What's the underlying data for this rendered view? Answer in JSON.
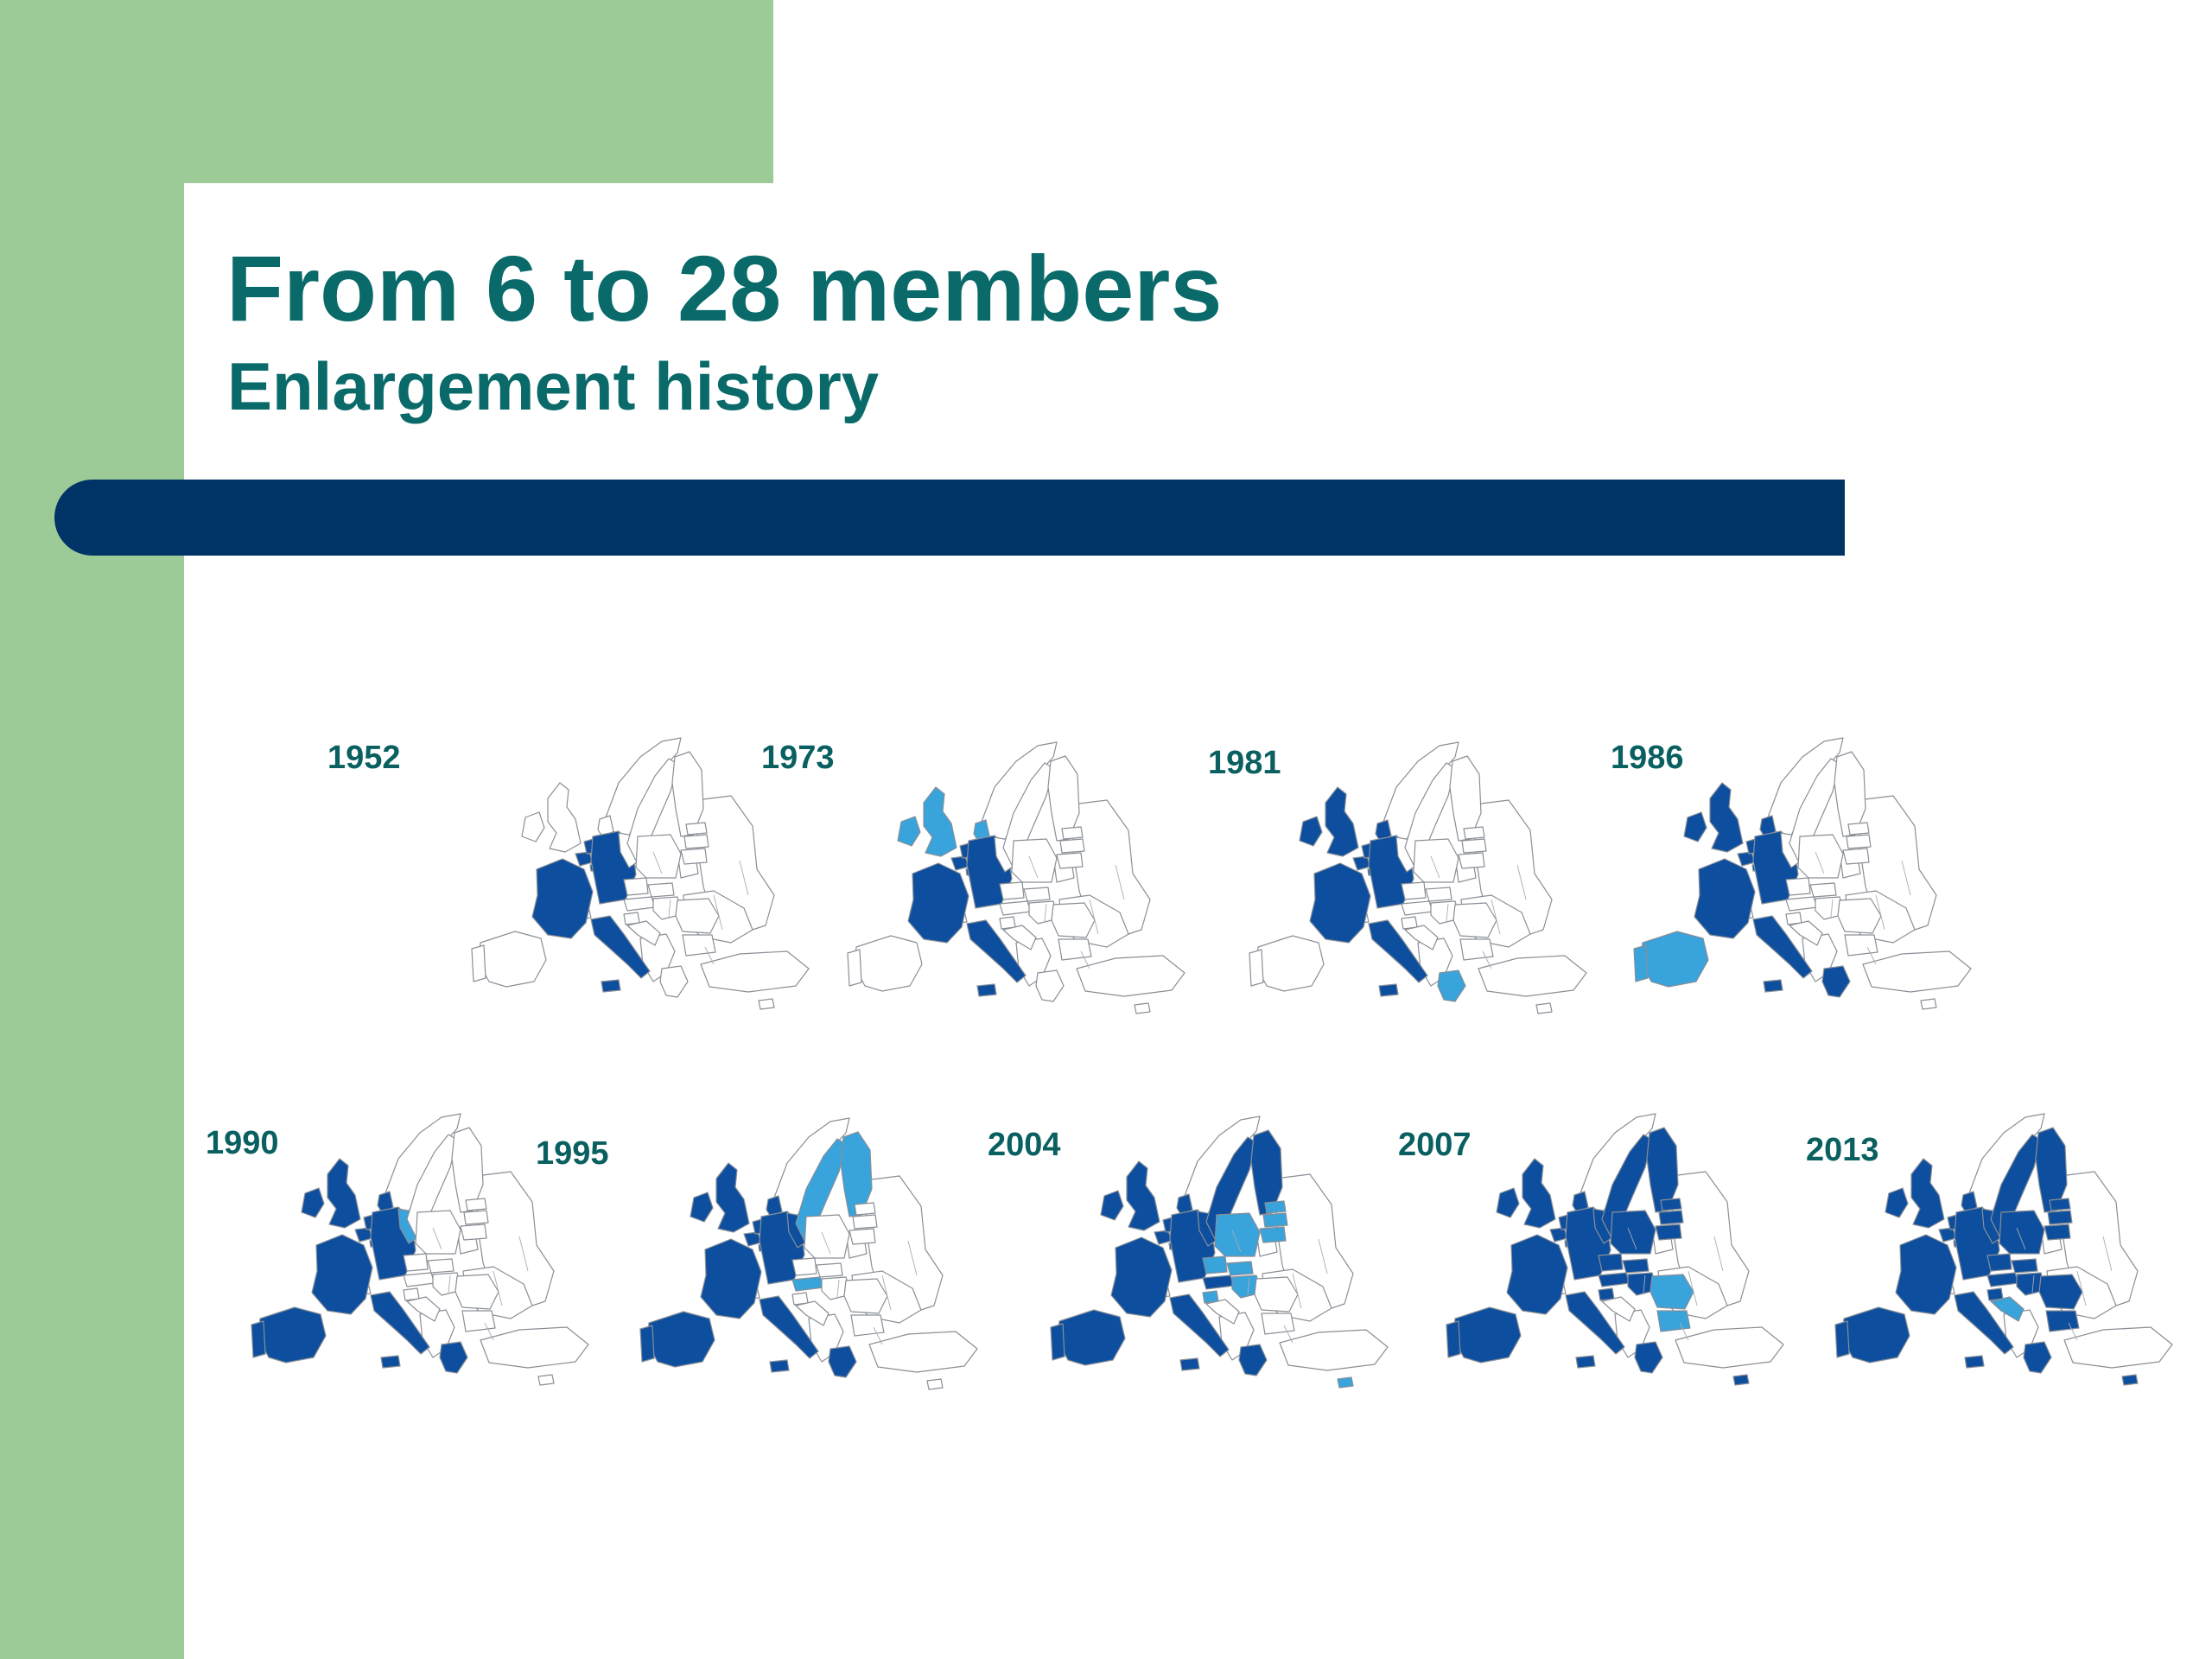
{
  "slide": {
    "title": "From 6 to 28 members",
    "subtitle": "Enlargement history"
  },
  "colors": {
    "side_band": "#9ccb98",
    "heading_text": "#0a6a6a",
    "rule_bar": "#003366",
    "existing_member": "#0d4f9e",
    "new_member": "#39a3dc",
    "non_member": "#ffffff"
  },
  "maps": [
    {
      "year": "1952",
      "members": [
        "fr",
        "de",
        "it",
        "be",
        "nl",
        "lu"
      ],
      "new": []
    },
    {
      "year": "1973",
      "members": [
        "fr",
        "de",
        "it",
        "be",
        "nl",
        "lu"
      ],
      "new": [
        "uk",
        "ie",
        "dk"
      ]
    },
    {
      "year": "1981",
      "members": [
        "fr",
        "de",
        "it",
        "be",
        "nl",
        "lu",
        "uk",
        "ie",
        "dk"
      ],
      "new": [
        "gr"
      ]
    },
    {
      "year": "1986",
      "members": [
        "fr",
        "de",
        "it",
        "be",
        "nl",
        "lu",
        "uk",
        "ie",
        "dk",
        "gr"
      ],
      "new": [
        "es",
        "pt"
      ]
    },
    {
      "year": "1990",
      "members": [
        "fr",
        "de",
        "it",
        "be",
        "nl",
        "lu",
        "uk",
        "ie",
        "dk",
        "gr",
        "es",
        "pt"
      ],
      "new": [
        "ddr"
      ]
    },
    {
      "year": "1995",
      "members": [
        "fr",
        "de",
        "it",
        "be",
        "nl",
        "lu",
        "uk",
        "ie",
        "dk",
        "gr",
        "es",
        "pt",
        "ddr"
      ],
      "new": [
        "se",
        "fi",
        "at"
      ]
    },
    {
      "year": "2004",
      "members": [
        "fr",
        "de",
        "it",
        "be",
        "nl",
        "lu",
        "uk",
        "ie",
        "dk",
        "gr",
        "es",
        "pt",
        "ddr",
        "se",
        "fi",
        "at"
      ],
      "new": [
        "pl",
        "cz",
        "sk",
        "hu",
        "si",
        "ee",
        "lv",
        "lt",
        "cy"
      ]
    },
    {
      "year": "2007",
      "members": [
        "fr",
        "de",
        "it",
        "be",
        "nl",
        "lu",
        "uk",
        "ie",
        "dk",
        "gr",
        "es",
        "pt",
        "ddr",
        "se",
        "fi",
        "at",
        "pl",
        "cz",
        "sk",
        "hu",
        "si",
        "ee",
        "lv",
        "lt",
        "cy"
      ],
      "new": [
        "ro",
        "bg"
      ]
    },
    {
      "year": "2013",
      "members": [
        "fr",
        "de",
        "it",
        "be",
        "nl",
        "lu",
        "uk",
        "ie",
        "dk",
        "gr",
        "es",
        "pt",
        "ddr",
        "se",
        "fi",
        "at",
        "pl",
        "cz",
        "sk",
        "hu",
        "si",
        "ee",
        "lv",
        "lt",
        "cy",
        "ro",
        "bg"
      ],
      "new": [
        "hr"
      ]
    }
  ]
}
